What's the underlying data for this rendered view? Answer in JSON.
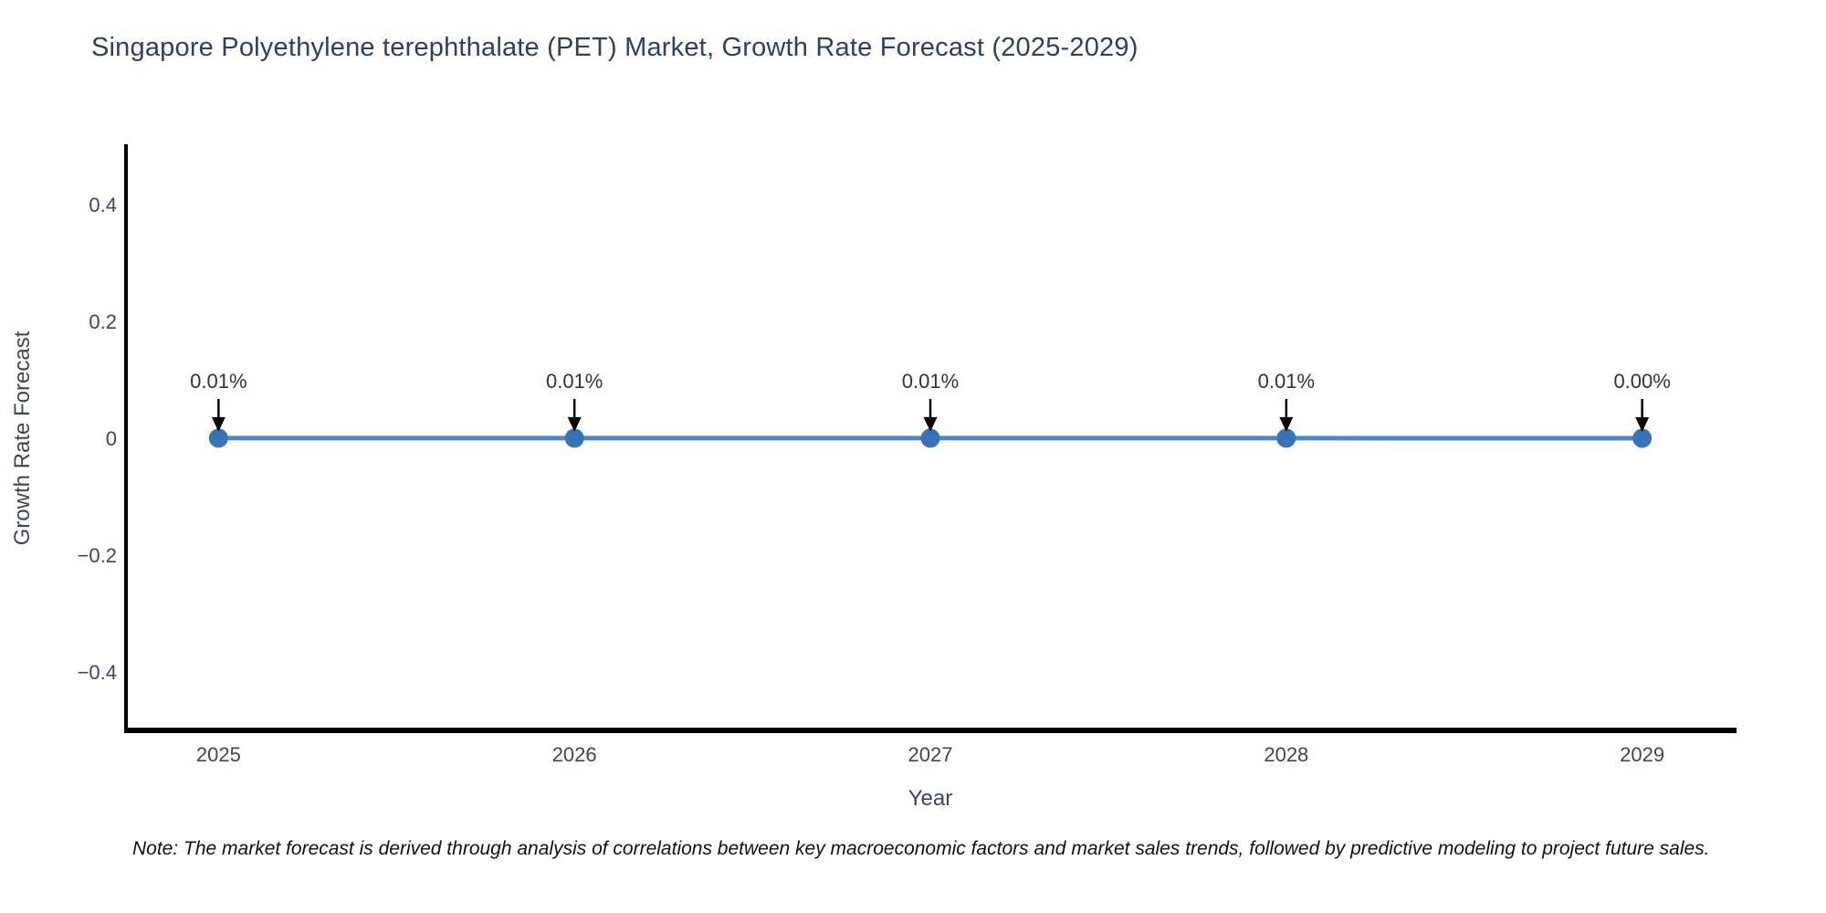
{
  "page": {
    "background": "#ffffff"
  },
  "note": "Note: The market forecast is derived through analysis of correlations between key macroeconomic factors and market sales trends, followed by predictive modeling to project future sales.",
  "chart_data": {
    "type": "line",
    "title": "Singapore Polyethylene terephthalate (PET) Market, Growth Rate Forecast (2025-2029)",
    "xlabel": "Year",
    "ylabel": "Growth Rate Forecast",
    "x": [
      2025,
      2026,
      2027,
      2028,
      2029
    ],
    "xtick_labels": [
      "2025",
      "2026",
      "2027",
      "2028",
      "2029"
    ],
    "series": [
      {
        "name": "Growth Rate Forecast",
        "values": [
          0.0001,
          0.0001,
          0.0001,
          0.0001,
          0.0
        ]
      }
    ],
    "point_labels": [
      "0.01%",
      "0.01%",
      "0.01%",
      "0.01%",
      "0.00%"
    ],
    "xlim": [
      2024.74,
      2029.26
    ],
    "ylim": [
      -0.5,
      0.5
    ],
    "ytick_values": [
      0.4,
      0.2,
      0,
      -0.2,
      -0.4
    ],
    "ytick_labels": [
      "0.4",
      "0.2",
      "0",
      "−0.2",
      "−0.4"
    ],
    "grid": false,
    "legend": "none",
    "colors": {
      "line": "#4d87c3",
      "marker": "#3674b5",
      "annotation": "#333333",
      "axis": "#000000",
      "tick_text": "#3d465a",
      "axis_label_text": "#3d465a",
      "title_text": "#2f3f5f"
    }
  }
}
